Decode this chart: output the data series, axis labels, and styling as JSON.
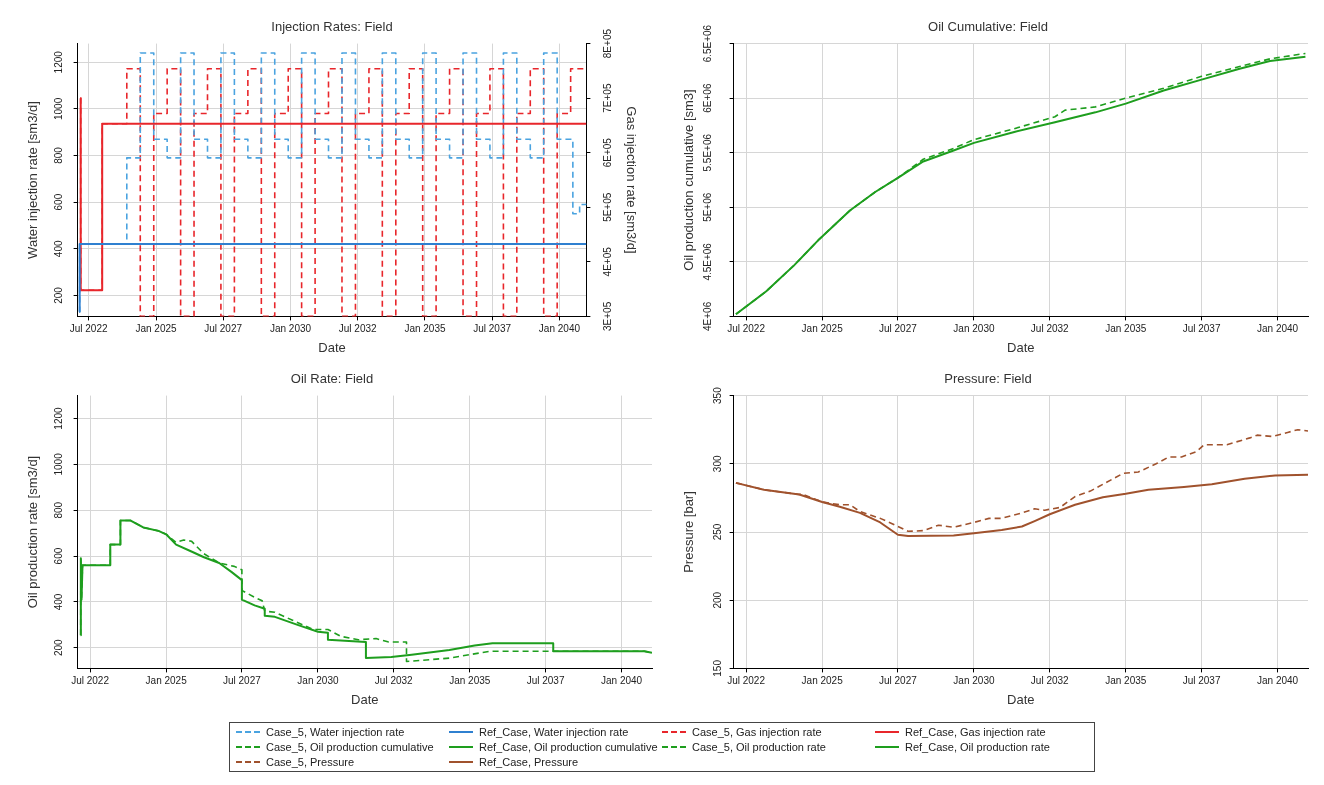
{
  "chart_data": [
    {
      "type": "step",
      "title": "Injection Rates: Field",
      "xlabel": "Date",
      "ylabel": "Water injection rate [sm3/d]",
      "y2label": "Gas injection rate [sm3/d]",
      "xlim": [
        "2022-02",
        "2041-01"
      ],
      "xticks": [
        {
          "value": "2022-07",
          "label": "Jul 2022"
        },
        {
          "value": "2025-01",
          "label": "Jan 2025"
        },
        {
          "value": "2027-07",
          "label": "Jul 2027"
        },
        {
          "value": "2030-01",
          "label": "Jan 2030"
        },
        {
          "value": "2032-07",
          "label": "Jul 2032"
        },
        {
          "value": "2035-01",
          "label": "Jan 2035"
        },
        {
          "value": "2037-07",
          "label": "Jul 2037"
        },
        {
          "value": "2040-01",
          "label": "Jan 2040"
        }
      ],
      "ylim": [
        110,
        1280
      ],
      "yticks": [
        200,
        400,
        600,
        800,
        1000,
        1200
      ],
      "y2lim": [
        300000,
        800000
      ],
      "y2ticks": [
        {
          "value": 300000,
          "label": "3E+05"
        },
        {
          "value": 400000,
          "label": "4E+05"
        },
        {
          "value": 500000,
          "label": "5E+05"
        },
        {
          "value": 600000,
          "label": "6E+05"
        },
        {
          "value": 700000,
          "label": "7E+05"
        },
        {
          "value": 800000,
          "label": "8E+05"
        }
      ],
      "grid": true,
      "legend": "bottom",
      "series": [
        {
          "name": "Case_5, Water injection rate",
          "color": "#4aa3e0",
          "line_style": "dashed",
          "x": [
            "2022-02-20",
            "2022-03-01",
            "2023-12",
            "2024-06",
            "2024-12",
            "2025-06",
            "2025-12",
            "2026-06",
            "2026-12",
            "2027-06",
            "2027-12",
            "2028-06",
            "2028-12",
            "2029-06",
            "2029-12",
            "2030-06",
            "2030-12",
            "2031-06",
            "2031-12",
            "2032-06",
            "2032-12",
            "2033-06",
            "2033-12",
            "2034-06",
            "2034-12",
            "2035-06",
            "2035-12",
            "2036-06",
            "2036-12",
            "2037-06",
            "2037-12",
            "2038-06",
            "2038-12",
            "2039-06",
            "2039-12",
            "2040-07",
            "2040-10",
            "2041-01"
          ],
          "values": [
            130,
            420,
            790,
            1240,
            870,
            790,
            1240,
            870,
            790,
            1240,
            870,
            790,
            1240,
            870,
            790,
            1240,
            870,
            790,
            1240,
            870,
            790,
            1240,
            870,
            790,
            1240,
            870,
            790,
            1240,
            870,
            790,
            1240,
            870,
            790,
            1240,
            870,
            550,
            590,
            600
          ]
        },
        {
          "name": "Ref_Case, Water injection rate",
          "color": "#2f80d0",
          "line_style": "solid",
          "x": [
            "2022-02-20",
            "2022-03-01",
            "2041-01"
          ],
          "values": [
            130,
            420,
            420
          ]
        },
        {
          "name": "Case_5, Gas injection rate",
          "color": "#e8262b",
          "line_style": "dashed",
          "axis": "y2",
          "x": [
            "2022-03-10",
            "2022-03-15",
            "2023-01",
            "2023-12",
            "2024-06",
            "2024-12",
            "2025-06",
            "2025-12",
            "2026-06",
            "2026-12",
            "2027-06",
            "2027-12",
            "2028-06",
            "2028-12",
            "2029-06",
            "2029-12",
            "2030-06",
            "2030-12",
            "2031-06",
            "2031-12",
            "2032-06",
            "2032-12",
            "2033-06",
            "2033-12",
            "2034-06",
            "2034-12",
            "2035-06",
            "2035-12",
            "2036-06",
            "2036-12",
            "2037-06",
            "2037-12",
            "2038-06",
            "2038-12",
            "2039-06",
            "2039-12",
            "2040-06",
            "2041-01"
          ],
          "values": [
            700000,
            348000,
            653000,
            754000,
            300000,
            672000,
            754000,
            300000,
            672000,
            754000,
            300000,
            672000,
            754000,
            300000,
            672000,
            754000,
            300000,
            672000,
            754000,
            300000,
            672000,
            754000,
            300000,
            672000,
            754000,
            300000,
            672000,
            754000,
            300000,
            672000,
            754000,
            300000,
            672000,
            754000,
            300000,
            672000,
            754000,
            754000
          ]
        },
        {
          "name": "Ref_Case, Gas injection rate",
          "color": "#e8262b",
          "line_style": "solid",
          "axis": "y2",
          "x": [
            "2022-03-10",
            "2022-03-15",
            "2023-01",
            "2041-01"
          ],
          "values": [
            700000,
            348000,
            653000,
            653000
          ]
        }
      ]
    },
    {
      "type": "line",
      "title": "Oil Cumulative: Field",
      "xlabel": "Date",
      "ylabel": "Oil production cumulative [sm3]",
      "xlim": [
        "2022-02",
        "2041-01"
      ],
      "xticks": [
        {
          "value": "2022-07",
          "label": "Jul 2022"
        },
        {
          "value": "2025-01",
          "label": "Jan 2025"
        },
        {
          "value": "2027-07",
          "label": "Jul 2027"
        },
        {
          "value": "2030-01",
          "label": "Jan 2030"
        },
        {
          "value": "2032-07",
          "label": "Jul 2032"
        },
        {
          "value": "2035-01",
          "label": "Jan 2035"
        },
        {
          "value": "2037-07",
          "label": "Jul 2037"
        },
        {
          "value": "2040-01",
          "label": "Jan 2040"
        }
      ],
      "ylim": [
        4000000,
        6500000
      ],
      "yticks": [
        {
          "value": 4000000,
          "label": "4E+06"
        },
        {
          "value": 4500000,
          "label": "4.5E+06"
        },
        {
          "value": 5000000,
          "label": "5E+06"
        },
        {
          "value": 5500000,
          "label": "5.5E+06"
        },
        {
          "value": 6000000,
          "label": "6E+06"
        },
        {
          "value": 6500000,
          "label": "6.5E+06"
        }
      ],
      "grid": true,
      "legend": "bottom",
      "series": [
        {
          "name": "Case_5, Oil production cumulative",
          "color": "#1e9e1e",
          "line_style": "dashed",
          "x": [
            "2022-03",
            "2023-03",
            "2024-02",
            "2024-12",
            "2025-12",
            "2026-10",
            "2027-07",
            "2028-05",
            "2029-05",
            "2030-01",
            "2031-05",
            "2032-09",
            "2033-01",
            "2034-01",
            "2035-01",
            "2036-04",
            "2037-07",
            "2038-10",
            "2039-10",
            "2040-12"
          ],
          "values": [
            4020000,
            4230000,
            4470000,
            4710000,
            4970000,
            5140000,
            5270000,
            5440000,
            5540000,
            5620000,
            5720000,
            5830000,
            5890000,
            5920000,
            6000000,
            6090000,
            6200000,
            6290000,
            6360000,
            6410000
          ]
        },
        {
          "name": "Ref_Case, Oil production cumulative",
          "color": "#1e9e1e",
          "line_style": "solid",
          "x": [
            "2022-03",
            "2023-03",
            "2024-02",
            "2024-12",
            "2025-12",
            "2026-10",
            "2027-07",
            "2028-05",
            "2029-05",
            "2030-01",
            "2031-05",
            "2032-09",
            "2034-01",
            "2035-01",
            "2036-04",
            "2037-07",
            "2038-10",
            "2039-10",
            "2040-12"
          ],
          "values": [
            4020000,
            4230000,
            4470000,
            4710000,
            4970000,
            5140000,
            5270000,
            5420000,
            5520000,
            5590000,
            5690000,
            5780000,
            5870000,
            5950000,
            6070000,
            6170000,
            6270000,
            6340000,
            6380000
          ]
        }
      ]
    },
    {
      "type": "line",
      "title": "Oil Rate: Field",
      "xlabel": "Date",
      "ylabel": "Oil production rate [sm3/d]",
      "xlim": [
        "2022-02",
        "2041-01"
      ],
      "xticks": [
        {
          "value": "2022-07",
          "label": "Jul 2022"
        },
        {
          "value": "2025-01",
          "label": "Jan 2025"
        },
        {
          "value": "2027-07",
          "label": "Jul 2027"
        },
        {
          "value": "2030-01",
          "label": "Jan 2030"
        },
        {
          "value": "2032-07",
          "label": "Jul 2032"
        },
        {
          "value": "2035-01",
          "label": "Jan 2035"
        },
        {
          "value": "2037-07",
          "label": "Jul 2037"
        },
        {
          "value": "2040-01",
          "label": "Jan 2040"
        }
      ],
      "ylim": [
        110,
        1300
      ],
      "yticks": [
        200,
        400,
        600,
        800,
        1000,
        1200
      ],
      "grid": true,
      "legend": "bottom",
      "series": [
        {
          "name": "Case_5, Oil production rate",
          "color": "#1e9e1e",
          "line_style": "dashed",
          "x": [
            "2022-03-10",
            "2022-03-12",
            "2022-03-20",
            "2022-04-01",
            "2023-03-01",
            "2023-03-01",
            "2023-07-01",
            "2023-07-01",
            "2023-11-01",
            "2024-04-01",
            "2024-10-01",
            "2025-01-01",
            "2025-05-01",
            "2025-08-01",
            "2025-11-01",
            "2026-04-01",
            "2026-10-01",
            "2027-04-01",
            "2027-07-01",
            "2027-07-01",
            "2027-12-01",
            "2028-03-01",
            "2028-04-01",
            "2028-08-01",
            "2029-03-01",
            "2029-11-01",
            "2030-05-01",
            "2030-10-01",
            "2031-05-01",
            "2031-12-01",
            "2032-05-01",
            "2032-12-01",
            "2032-12-01",
            "2034-05-01",
            "2035-09-01",
            "2040-10-01",
            "2041-01-01"
          ],
          "values": [
            255,
            590,
            410,
            560,
            560,
            650,
            650,
            755,
            755,
            725,
            710,
            695,
            660,
            670,
            665,
            610,
            570,
            555,
            540,
            450,
            420,
            405,
            360,
            355,
            320,
            280,
            280,
            250,
            235,
            240,
            225,
            225,
            140,
            155,
            185,
            185,
            178
          ]
        },
        {
          "name": "Ref_Case, Oil production rate",
          "color": "#1e9e1e",
          "line_style": "solid",
          "x": [
            "2022-03-10",
            "2022-03-12",
            "2022-03-20",
            "2022-04-01",
            "2023-03-01",
            "2023-03-01",
            "2023-07-01",
            "2023-07-01",
            "2023-11-01",
            "2024-04-01",
            "2024-10-01",
            "2025-01-01",
            "2025-05-01",
            "2025-11-01",
            "2026-04-01",
            "2026-10-01",
            "2027-03-01",
            "2027-07-01",
            "2027-07-01",
            "2027-12-01",
            "2028-04-01",
            "2028-04-01",
            "2028-08-01",
            "2029-05-01",
            "2030-01-01",
            "2030-05-01",
            "2030-05-01",
            "2031-08-01",
            "2031-08-01",
            "2032-06-01",
            "2033-02-01",
            "2034-05-01",
            "2035-03-01",
            "2035-10-01",
            "2037-10-01",
            "2037-10-01",
            "2040-10-01",
            "2041-01-01"
          ],
          "values": [
            255,
            590,
            410,
            560,
            560,
            650,
            650,
            755,
            755,
            725,
            710,
            695,
            650,
            620,
            595,
            570,
            530,
            495,
            410,
            385,
            370,
            340,
            335,
            300,
            270,
            265,
            235,
            225,
            155,
            160,
            170,
            190,
            210,
            220,
            220,
            185,
            185,
            178
          ]
        }
      ]
    },
    {
      "type": "line",
      "title": "Pressure: Field",
      "xlabel": "Date",
      "ylabel": "Pressure [bar]",
      "xlim": [
        "2022-02",
        "2041-01"
      ],
      "xticks": [
        {
          "value": "2022-07",
          "label": "Jul 2022"
        },
        {
          "value": "2025-01",
          "label": "Jan 2025"
        },
        {
          "value": "2027-07",
          "label": "Jul 2027"
        },
        {
          "value": "2030-01",
          "label": "Jan 2030"
        },
        {
          "value": "2032-07",
          "label": "Jul 2032"
        },
        {
          "value": "2035-01",
          "label": "Jan 2035"
        },
        {
          "value": "2037-07",
          "label": "Jul 2037"
        },
        {
          "value": "2040-01",
          "label": "Jan 2040"
        }
      ],
      "ylim": [
        150,
        350
      ],
      "yticks": [
        150,
        200,
        250,
        300,
        350
      ],
      "grid": true,
      "legend": "bottom",
      "series": [
        {
          "name": "Case_5, Pressure",
          "color": "#a0522d",
          "line_style": "dashed",
          "x": [
            "2022-03",
            "2023-02",
            "2024-04",
            "2024-05",
            "2025-01",
            "2025-08",
            "2025-12",
            "2026-04",
            "2026-12",
            "2027-06",
            "2027-11",
            "2028-05",
            "2028-11",
            "2029-05",
            "2030-01",
            "2030-07",
            "2030-12",
            "2031-08",
            "2032-01",
            "2032-05",
            "2032-11",
            "2033-05",
            "2033-11",
            "2034-05",
            "2034-12",
            "2035-06",
            "2036-01",
            "2036-06",
            "2036-11",
            "2037-05",
            "2037-08",
            "2038-05",
            "2039-02",
            "2039-05",
            "2039-11",
            "2040-05",
            "2040-09",
            "2041-01"
          ],
          "values": [
            286,
            281,
            277.5,
            278,
            272,
            270,
            270,
            265,
            260,
            255,
            250.5,
            251,
            255,
            253.5,
            257,
            260,
            260,
            264,
            267,
            266,
            268,
            276,
            280,
            286,
            293,
            294,
            300,
            305,
            305,
            309,
            314,
            314,
            319,
            321,
            320,
            323,
            325,
            324
          ]
        },
        {
          "name": "Ref_Case, Pressure",
          "color": "#a0522d",
          "line_style": "solid",
          "x": [
            "2022-03",
            "2023-02",
            "2024-04",
            "2025-01",
            "2025-08",
            "2026-04",
            "2026-12",
            "2027-07",
            "2027-11",
            "2029-05",
            "2030-01",
            "2030-12",
            "2031-08",
            "2032-01",
            "2032-07",
            "2033-05",
            "2034-04",
            "2035-01",
            "2035-10",
            "2036-12",
            "2037-11",
            "2038-12",
            "2039-12",
            "2041-01"
          ],
          "values": [
            286,
            281,
            277.5,
            272,
            268.5,
            264,
            257,
            248,
            247,
            247.5,
            249,
            251.5,
            254,
            258,
            263,
            270,
            275.5,
            278,
            281,
            283,
            285,
            289,
            291.5,
            292
          ]
        }
      ]
    }
  ]
}
